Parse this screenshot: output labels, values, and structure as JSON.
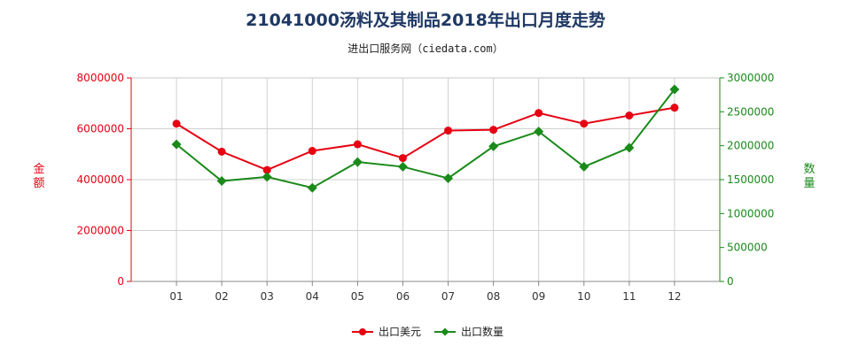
{
  "title": "21041000汤料及其制品2018年出口月度走势",
  "subtitle": "进出口服务网（ciedata.com）",
  "chart_data": {
    "type": "line",
    "categories": [
      "01",
      "02",
      "03",
      "04",
      "05",
      "06",
      "07",
      "08",
      "09",
      "10",
      "11",
      "12"
    ],
    "y_left": {
      "label": "金额",
      "range": [
        0,
        8000000
      ],
      "ticks": [
        "0",
        "2000000",
        "4000000",
        "6000000",
        "8000000"
      ],
      "color": "#e60012"
    },
    "y_right": {
      "label": "数量",
      "range": [
        0,
        3000000
      ],
      "ticks": [
        "0",
        "500000",
        "1000000",
        "1500000",
        "2000000",
        "2500000",
        "3000000"
      ],
      "color": "#1a8a1a"
    },
    "series": [
      {
        "name": "出口美元",
        "axis": "left",
        "color": "#e60012",
        "marker": "circle",
        "values": [
          6200000,
          5100000,
          4380000,
          5130000,
          5390000,
          4850000,
          5930000,
          5960000,
          6620000,
          6200000,
          6520000,
          6830000
        ]
      },
      {
        "name": "出口数量",
        "axis": "right",
        "color": "#1a8a1a",
        "marker": "diamond",
        "values": [
          2020000,
          1480000,
          1540000,
          1380000,
          1760000,
          1690000,
          1520000,
          1990000,
          2210000,
          1690000,
          1970000,
          2830000
        ]
      }
    ],
    "grid": true,
    "legend_position": "bottom-center"
  }
}
